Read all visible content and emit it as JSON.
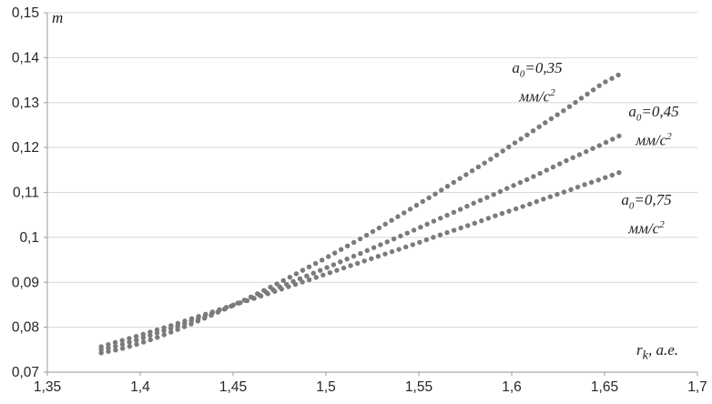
{
  "chart_data": {
    "type": "scatter",
    "title": "",
    "marker": "dot",
    "grid": "horizontal",
    "colors": {
      "series": "#7b7b7b",
      "gridline": "#d7d7d7",
      "axis": "#a9a9a9",
      "text": "#262626"
    },
    "y_axis": {
      "title": "m",
      "min": 0.07,
      "max": 0.15,
      "ticks": [
        {
          "v": 0.15,
          "label": "0,15"
        },
        {
          "v": 0.14,
          "label": "0,14"
        },
        {
          "v": 0.13,
          "label": "0,13"
        },
        {
          "v": 0.12,
          "label": "0,12"
        },
        {
          "v": 0.11,
          "label": "0,11"
        },
        {
          "v": 0.1,
          "label": "0,1"
        },
        {
          "v": 0.09,
          "label": "0,09"
        },
        {
          "v": 0.08,
          "label": "0,08"
        },
        {
          "v": 0.07,
          "label": "0,07"
        }
      ]
    },
    "x_axis": {
      "title": {
        "base": "r",
        "sub": "k",
        "rest": ", а.е."
      },
      "min": 1.35,
      "max": 1.7,
      "ticks": [
        {
          "v": 1.35,
          "label": "1,35"
        },
        {
          "v": 1.4,
          "label": "1,4"
        },
        {
          "v": 1.45,
          "label": "1,45"
        },
        {
          "v": 1.5,
          "label": "1,5"
        },
        {
          "v": 1.55,
          "label": "1,55"
        },
        {
          "v": 1.6,
          "label": "1,6"
        },
        {
          "v": 1.65,
          "label": "1,65"
        },
        {
          "v": 1.7,
          "label": "1,7"
        }
      ]
    },
    "series": [
      {
        "name": "a0=0,35 мм/с2",
        "label_line1": {
          "base": "a",
          "sub": "0",
          "rest": "=0,35"
        },
        "label_line2": {
          "base": "мм/с",
          "sup": "2"
        },
        "points": [
          [
            1.379,
            0.0743
          ],
          [
            1.389,
            0.0751
          ],
          [
            1.399,
            0.0763
          ],
          [
            1.409,
            0.0777
          ],
          [
            1.419,
            0.0793
          ],
          [
            1.429,
            0.081
          ],
          [
            1.439,
            0.0828
          ],
          [
            1.449,
            0.0847
          ],
          [
            1.459,
            0.0866
          ],
          [
            1.469,
            0.0887
          ],
          [
            1.479,
            0.0908
          ],
          [
            1.489,
            0.093
          ],
          [
            1.499,
            0.0952
          ],
          [
            1.509,
            0.0975
          ],
          [
            1.519,
            0.0998
          ],
          [
            1.529,
            0.1022
          ],
          [
            1.539,
            0.1047
          ],
          [
            1.549,
            0.1072
          ],
          [
            1.559,
            0.1097
          ],
          [
            1.569,
            0.1123
          ],
          [
            1.579,
            0.1149
          ],
          [
            1.589,
            0.1175
          ],
          [
            1.599,
            0.1203
          ],
          [
            1.609,
            0.123
          ],
          [
            1.619,
            0.1258
          ],
          [
            1.629,
            0.1285
          ],
          [
            1.639,
            0.1314
          ],
          [
            1.649,
            0.1343
          ],
          [
            1.659,
            0.1365
          ]
        ]
      },
      {
        "name": "a0=0,45 мм/с2",
        "label_line1": {
          "base": "a",
          "sub": "0",
          "rest": "=0,45"
        },
        "label_line2": {
          "base": "мм/с",
          "sup": "2"
        },
        "points": [
          [
            1.379,
            0.075
          ],
          [
            1.389,
            0.076
          ],
          [
            1.399,
            0.0773
          ],
          [
            1.409,
            0.0787
          ],
          [
            1.419,
            0.0801
          ],
          [
            1.429,
            0.0816
          ],
          [
            1.439,
            0.0831
          ],
          [
            1.449,
            0.0847
          ],
          [
            1.459,
            0.0863
          ],
          [
            1.469,
            0.088
          ],
          [
            1.479,
            0.0896
          ],
          [
            1.489,
            0.0913
          ],
          [
            1.499,
            0.093
          ],
          [
            1.509,
            0.0948
          ],
          [
            1.519,
            0.0965
          ],
          [
            1.529,
            0.0983
          ],
          [
            1.539,
            0.1001
          ],
          [
            1.549,
            0.1019
          ],
          [
            1.559,
            0.1038
          ],
          [
            1.569,
            0.1056
          ],
          [
            1.579,
            0.1075
          ],
          [
            1.589,
            0.1093
          ],
          [
            1.599,
            0.1112
          ],
          [
            1.609,
            0.113
          ],
          [
            1.619,
            0.115
          ],
          [
            1.629,
            0.117
          ],
          [
            1.639,
            0.1189
          ],
          [
            1.649,
            0.1208
          ],
          [
            1.659,
            0.1228
          ]
        ]
      },
      {
        "name": "a0=0,75 мм/с2",
        "label_line1": {
          "base": "a",
          "sub": "0",
          "rest": "=0,75"
        },
        "label_line2": {
          "base": "мм/с",
          "sup": "2"
        },
        "points": [
          [
            1.379,
            0.0757
          ],
          [
            1.389,
            0.0769
          ],
          [
            1.399,
            0.0781
          ],
          [
            1.409,
            0.0794
          ],
          [
            1.419,
            0.0807
          ],
          [
            1.429,
            0.0821
          ],
          [
            1.439,
            0.0834
          ],
          [
            1.449,
            0.0848
          ],
          [
            1.459,
            0.0861
          ],
          [
            1.469,
            0.0875
          ],
          [
            1.479,
            0.0889
          ],
          [
            1.489,
            0.0903
          ],
          [
            1.499,
            0.0917
          ],
          [
            1.509,
            0.0931
          ],
          [
            1.519,
            0.0945
          ],
          [
            1.529,
            0.0959
          ],
          [
            1.539,
            0.0973
          ],
          [
            1.549,
            0.0987
          ],
          [
            1.559,
            0.1002
          ],
          [
            1.569,
            0.1016
          ],
          [
            1.579,
            0.103
          ],
          [
            1.589,
            0.1045
          ],
          [
            1.599,
            0.1059
          ],
          [
            1.609,
            0.1073
          ],
          [
            1.619,
            0.1088
          ],
          [
            1.629,
            0.1102
          ],
          [
            1.639,
            0.1117
          ],
          [
            1.649,
            0.1131
          ],
          [
            1.659,
            0.1146
          ]
        ]
      }
    ]
  }
}
